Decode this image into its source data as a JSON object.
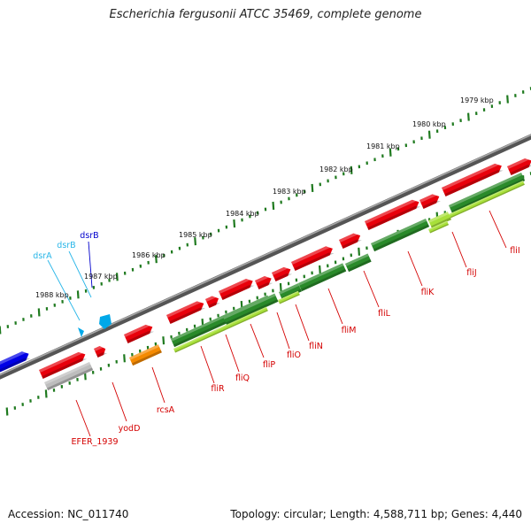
{
  "title": "Escherichia fergusonii ATCC 35469, complete genome",
  "footer": {
    "accession": "Accession: NC_011740",
    "summary": "Topology: circular; Length: 4,588,711 bp; Genes: 4,440"
  },
  "colors": {
    "backbone": "#7a7a7a",
    "tick": "#1f7a1f",
    "gene_forward": "#e8000b",
    "gene_sRNA": "#00a8e8",
    "gene_blue": "#0000e6",
    "cds_green_dark": "#2a8a2a",
    "cds_green_light": "#a8e03a",
    "cds_orange": "#f58a00",
    "cds_grey": "#bdbdbd",
    "label_red": "#d40000",
    "label_cyan": "#29b6e8",
    "label_blue": "#0000cc"
  },
  "kbp_ticks": [
    "1979 kbp",
    "1980 kbp",
    "1981 kbp",
    "1982 kbp",
    "1983 kbp",
    "1984 kbp",
    "1985 kbp",
    "1986 kbp",
    "1987 kbp",
    "1988 kbp"
  ],
  "genes": [
    {
      "name": "EFER_1939",
      "color": "label_red"
    },
    {
      "name": "yodD",
      "color": "label_red"
    },
    {
      "name": "rcsA",
      "color": "label_red"
    },
    {
      "name": "fliR",
      "color": "label_red"
    },
    {
      "name": "fliQ",
      "color": "label_red"
    },
    {
      "name": "fliP",
      "color": "label_red"
    },
    {
      "name": "fliO",
      "color": "label_red"
    },
    {
      "name": "fliN",
      "color": "label_red"
    },
    {
      "name": "fliM",
      "color": "label_red"
    },
    {
      "name": "fliL",
      "color": "label_red"
    },
    {
      "name": "fliK",
      "color": "label_red"
    },
    {
      "name": "fliJ",
      "color": "label_red"
    },
    {
      "name": "fliI",
      "color": "label_red"
    },
    {
      "name": "dsrA",
      "color": "label_cyan"
    },
    {
      "name": "dsrB",
      "color": "label_cyan"
    },
    {
      "name": "dsrB",
      "color": "label_blue"
    }
  ]
}
